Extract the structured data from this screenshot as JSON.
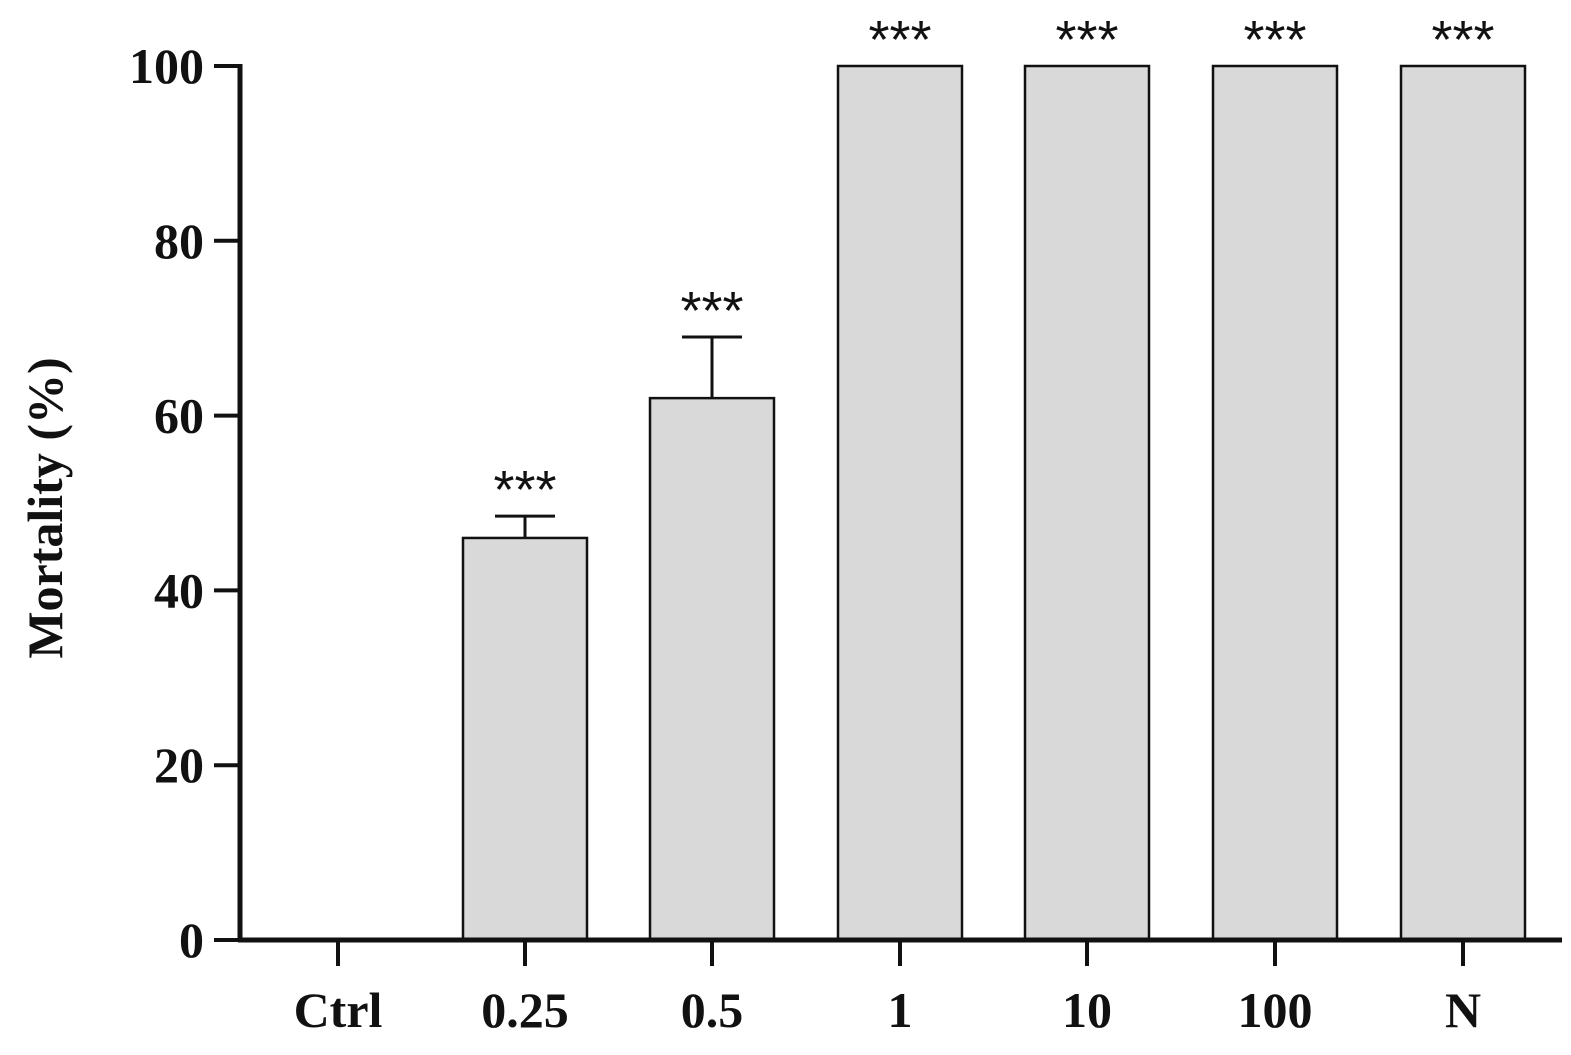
{
  "chart_data": {
    "type": "bar",
    "title": "",
    "xlabel": "",
    "ylabel": "Mortality (%)",
    "ylim": [
      0,
      100
    ],
    "yticks": [
      0,
      20,
      40,
      60,
      80,
      100
    ],
    "grid": false,
    "legend": "none",
    "categories": [
      "Ctrl",
      "0.25",
      "0.5",
      "1",
      "10",
      "100",
      "N"
    ],
    "values": [
      0,
      46,
      62,
      100,
      100,
      100,
      100
    ],
    "errors": [
      0,
      2.5,
      7,
      0,
      0,
      0,
      0
    ],
    "significance": [
      "",
      "***",
      "***",
      "***",
      "***",
      "***",
      "***"
    ],
    "colors": {
      "bar_fill": "#d9d9d9",
      "bar_stroke": "#111111",
      "axis": "#111111"
    }
  }
}
